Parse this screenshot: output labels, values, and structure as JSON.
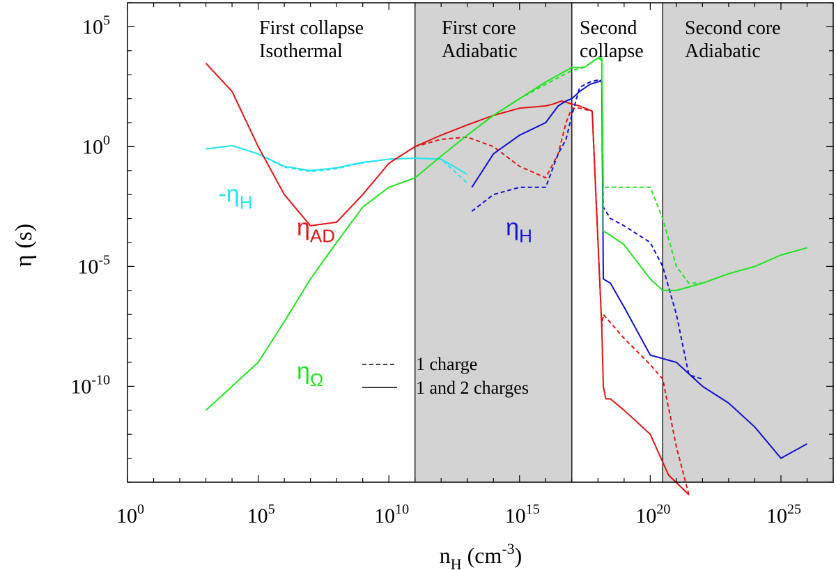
{
  "chart_data": {
    "type": "line",
    "xscale": "log",
    "yscale": "log",
    "xlim": [
      1,
      1e+27
    ],
    "ylim": [
      1e-14,
      1000000.0
    ],
    "xticks": [
      {
        "value": 1,
        "base": "10",
        "exp": "0"
      },
      {
        "value": 100000.0,
        "base": "10",
        "exp": "5"
      },
      {
        "value": 10000000000.0,
        "base": "10",
        "exp": "10"
      },
      {
        "value": 1000000000000000.0,
        "base": "10",
        "exp": "15"
      },
      {
        "value": 1e+20,
        "base": "10",
        "exp": "20"
      },
      {
        "value": 1e+25,
        "base": "10",
        "exp": "25"
      }
    ],
    "yticks": [
      {
        "value": 100000.0,
        "base": "10",
        "exp": "5"
      },
      {
        "value": 1,
        "base": "10",
        "exp": "0"
      },
      {
        "value": 1e-05,
        "base": "10",
        "exp": "-5"
      },
      {
        "value": 1e-10,
        "base": "10",
        "exp": "-10"
      }
    ],
    "xlabel": {
      "main": "n",
      "sub": "H",
      "rest": " (cm",
      "sup": "-3",
      "close": ")"
    },
    "ylabel": "η (s)",
    "regions": [
      {
        "x0": 100000000000.0,
        "x1": 1e+17,
        "shaded": false,
        "line1": "",
        "line2": ""
      },
      {
        "x0": 100000000000.0,
        "x1": 1e+17,
        "shaded": true,
        "line1": "First core",
        "line2": "Adiabatic"
      },
      {
        "x0": 1e+17,
        "x1": 3e+20,
        "shaded": false,
        "line1": "Second",
        "line2": "collapse"
      },
      {
        "x0": 3e+20,
        "x1": 1e+27,
        "shaded": true,
        "line1": "Second core",
        "line2": "Adiabatic"
      }
    ],
    "region0_text": {
      "line1": "First collapse",
      "line2": "Isothermal"
    },
    "legend": {
      "dashed": "1 charge",
      "solid": "1 and 2 charges"
    },
    "curve_labels": [
      {
        "series": "minus_eta_H",
        "main": "-η",
        "sub": "H",
        "color": "#22e5ee",
        "x": 3000.0,
        "y": 0.005
      },
      {
        "series": "eta_AD",
        "main": "η",
        "sub": "AD",
        "color": "#e11414",
        "x": 3000000.0,
        "y": 0.0002
      },
      {
        "series": "eta_H",
        "main": "η",
        "sub": "H",
        "color": "#1010d2",
        "x": 300000000000000.0,
        "y": 0.0002
      },
      {
        "series": "eta_Omega",
        "main": "η",
        "sub": "Ω",
        "color": "#1ee41e",
        "x": 3000000.0,
        "y": 2e-10
      }
    ],
    "series": [
      {
        "name": "-ηH",
        "style": "solid",
        "color": "#22e5ee",
        "x": [
          1000.0,
          10000.0,
          100000.0,
          1000000.0,
          10000000.0,
          100000000.0,
          1000000000.0,
          10000000000.0,
          100000000000.0,
          1000000000000.0,
          10000000000000.0
        ],
        "y": [
          0.8,
          1.1,
          0.5,
          0.15,
          0.1,
          0.13,
          0.22,
          0.3,
          0.33,
          0.3,
          0.07
        ]
      },
      {
        "name": "-ηH",
        "style": "dashed",
        "color": "#22e5ee",
        "x": [
          1000.0,
          10000.0,
          100000.0,
          1000000.0,
          10000000.0,
          100000000.0,
          1000000000.0,
          10000000000.0,
          100000000000.0,
          1000000000000.0,
          10000000000000.0
        ],
        "y": [
          0.8,
          1.1,
          0.5,
          0.14,
          0.09,
          0.12,
          0.21,
          0.3,
          0.33,
          0.3,
          0.03
        ]
      },
      {
        "name": "ηAD",
        "style": "solid",
        "color": "#e11414",
        "x": [
          1000.0,
          10000.0,
          100000.0,
          1000000.0,
          10000000.0,
          100000000.0,
          1000000000.0,
          10000000000.0,
          100000000000.0,
          1000000000000.0,
          10000000000000.0,
          100000000000000.0,
          1000000000000000.0,
          1e+16,
          2e+16,
          4e+16,
          1e+17,
          2e+17,
          6e+17,
          1.4e+18,
          1.6e+18,
          2e+18,
          3e+18,
          1e+19,
          1e+20,
          5e+20,
          3e+21
        ],
        "y": [
          3000,
          200,
          1.0,
          0.01,
          0.0005,
          0.0007,
          0.01,
          0.2,
          1.0,
          3.0,
          8,
          20,
          40,
          50,
          60,
          80,
          60,
          50,
          30,
          3e-08,
          1e-10,
          3e-11,
          3e-11,
          1e-11,
          1e-12,
          2e-14,
          3e-15
        ]
      },
      {
        "name": "ηAD",
        "style": "dashed",
        "color": "#e11414",
        "x": [
          100000000000.0,
          1000000000000.0,
          10000000000000.0,
          100000000000000.0,
          1000000000000000.0,
          1e+16,
          3e+16,
          6e+16,
          1e+17,
          2e+17,
          6e+17,
          1.4e+18,
          1.6e+18,
          1e+19,
          1e+20,
          3e+20,
          1e+21,
          3e+21
        ],
        "y": [
          1.0,
          2.0,
          2.5,
          1.0,
          0.15,
          0.05,
          0.5,
          10,
          40,
          40,
          30,
          3e-08,
          1e-07,
          1e-08,
          8e-10,
          2e-10,
          3e-13,
          3e-15
        ]
      },
      {
        "name": "ηH",
        "style": "solid",
        "color": "#1010d2",
        "x": [
          15000000000000.0,
          100000000000000.0,
          1000000000000000.0,
          1e+16,
          3e+16,
          6e+16,
          1e+17,
          2e+17,
          5e+17,
          1e+18,
          1.4e+18,
          1.6e+18,
          3e+18,
          1e+19,
          1e+20,
          1e+21,
          1e+22,
          1e+23,
          1e+24,
          1e+25,
          1e+26
        ],
        "y": [
          0.02,
          0.5,
          3,
          10,
          50,
          80,
          100,
          200,
          400,
          500,
          600,
          3e-06,
          2e-06,
          2e-07,
          2e-09,
          1e-09,
          1e-10,
          2e-11,
          2e-12,
          1e-13,
          4e-13
        ]
      },
      {
        "name": "ηH",
        "style": "dashed",
        "color": "#1010d2",
        "x": [
          15000000000000.0,
          100000000000000.0,
          1000000000000000.0,
          1e+16,
          3e+16,
          6e+16,
          1e+17,
          2e+17,
          5e+17,
          1e+18,
          1.4e+18,
          1.6e+18,
          3e+18,
          1e+19,
          1e+20,
          3e+20,
          1e+21,
          3e+21,
          1e+22
        ],
        "y": [
          0.002,
          0.01,
          0.02,
          0.02,
          0.5,
          2,
          20,
          300,
          500,
          600,
          500,
          0.003,
          0.001,
          0.0005,
          0.0001,
          1e-05,
          1e-07,
          3e-10,
          2e-10
        ]
      },
      {
        "name": "ηΩ",
        "style": "solid",
        "color": "#1ee41e",
        "x": [
          1000.0,
          10000.0,
          100000.0,
          1000000.0,
          10000000.0,
          100000000.0,
          1000000000.0,
          10000000000.0,
          100000000000.0,
          1000000000000.0,
          10000000000000.0,
          100000000000000.0,
          1000000000000000.0,
          1e+16,
          1e+17,
          3e+17,
          1e+18,
          1.4e+18,
          1.6e+18,
          3e+18,
          1e+19,
          1e+20,
          3e+20,
          1e+21,
          1e+22,
          1e+23,
          1e+24,
          1e+25,
          1e+26
        ],
        "y": [
          1e-11,
          1e-10,
          1e-09,
          5e-08,
          3e-06,
          0.0001,
          0.003,
          0.02,
          0.05,
          0.4,
          3,
          20,
          100,
          500,
          2000,
          2000,
          5000,
          5000,
          0.0003,
          0.0002,
          8e-05,
          3e-06,
          1e-06,
          1e-06,
          2e-06,
          5e-06,
          1e-05,
          3e-05,
          6e-05
        ]
      },
      {
        "name": "ηΩ",
        "style": "dashed",
        "color": "#1ee41e",
        "x": [
          10000000000000.0,
          100000000000000.0,
          1000000000000000.0,
          1e+16,
          1e+17,
          3e+17,
          1e+18,
          1.4e+18,
          1.6e+18,
          3e+18,
          1e+19,
          1e+20,
          3e+20,
          1e+21,
          3e+21,
          1e+22
        ],
        "y": [
          3,
          20,
          100,
          400,
          1500,
          2000,
          5000,
          4000,
          0.02,
          0.02,
          0.02,
          0.02,
          0.001,
          1e-05,
          2e-06,
          2e-06
        ]
      }
    ]
  }
}
